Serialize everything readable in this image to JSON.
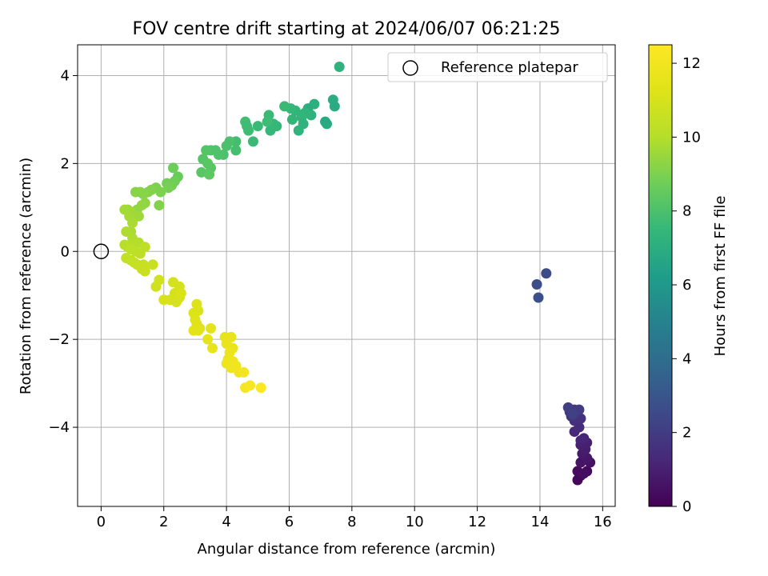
{
  "chart_data": {
    "type": "scatter",
    "title": "FOV centre drift starting at 2024/06/07 06:21:25",
    "xlabel": "Angular distance from reference (arcmin)",
    "ylabel": "Rotation from reference (arcmin)",
    "xlim": [
      -0.75,
      16.4
    ],
    "ylim": [
      -5.8,
      4.7
    ],
    "xticks": [
      0,
      2,
      4,
      6,
      8,
      10,
      12,
      14,
      16
    ],
    "yticks": [
      -4,
      -2,
      0,
      2,
      4
    ],
    "xtick_labels": [
      "0",
      "2",
      "4",
      "6",
      "8",
      "10",
      "12",
      "14",
      "16"
    ],
    "ytick_labels": [
      "−4",
      "−2",
      "0",
      "2",
      "4"
    ],
    "grid": true,
    "legend": {
      "position": "top-right",
      "label": "Reference platepar"
    },
    "reference_point": {
      "x": 0,
      "y": 0
    },
    "colorbar": {
      "label": "Hours from first FF file",
      "colormap": "viridis",
      "range": [
        0,
        12.5
      ],
      "ticks": [
        0,
        2,
        4,
        6,
        8,
        10,
        12
      ],
      "tick_labels": [
        "0",
        "2",
        "4",
        "6",
        "8",
        "10",
        "12"
      ]
    },
    "series": [
      {
        "points": [
          [
            15.2,
            -5.2
          ],
          [
            15.3,
            -5.1
          ],
          [
            15.5,
            -5.0
          ],
          [
            15.2,
            -5.0
          ],
          [
            15.4,
            -5.05
          ],
          [
            15.6,
            -4.8
          ],
          [
            15.3,
            -4.8
          ],
          [
            15.5,
            -4.7
          ],
          [
            15.35,
            -4.6
          ],
          [
            15.45,
            -4.5
          ],
          [
            15.3,
            -4.4
          ],
          [
            15.5,
            -4.35
          ],
          [
            15.3,
            -4.3
          ],
          [
            15.4,
            -4.25
          ],
          [
            15.1,
            -4.1
          ],
          [
            15.25,
            -4.0
          ],
          [
            15.1,
            -3.85
          ],
          [
            15.3,
            -3.8
          ],
          [
            15.0,
            -3.75
          ],
          [
            14.95,
            -3.65
          ],
          [
            15.1,
            -3.6
          ],
          [
            15.25,
            -3.6
          ],
          [
            14.9,
            -3.55
          ],
          [
            15.05,
            -3.7
          ],
          [
            13.9,
            -0.75
          ],
          [
            14.2,
            -0.5
          ],
          [
            13.95,
            -1.05
          ],
          [
            7.6,
            4.2
          ],
          [
            7.4,
            3.45
          ],
          [
            7.45,
            3.3
          ],
          [
            6.8,
            3.35
          ],
          [
            6.6,
            3.25
          ],
          [
            6.7,
            3.1
          ],
          [
            6.5,
            3.15
          ],
          [
            6.4,
            3.05
          ],
          [
            6.2,
            3.2
          ],
          [
            6.05,
            3.25
          ],
          [
            5.85,
            3.3
          ],
          [
            6.1,
            3.0
          ],
          [
            6.45,
            2.9
          ],
          [
            6.3,
            2.75
          ],
          [
            7.2,
            2.9
          ],
          [
            7.15,
            2.95
          ],
          [
            5.6,
            2.85
          ],
          [
            5.4,
            2.75
          ],
          [
            5.5,
            2.9
          ],
          [
            5.35,
            3.1
          ],
          [
            5.3,
            2.95
          ],
          [
            5.0,
            2.85
          ],
          [
            4.85,
            2.5
          ],
          [
            4.7,
            2.75
          ],
          [
            4.6,
            2.95
          ],
          [
            4.65,
            2.85
          ],
          [
            4.3,
            2.5
          ],
          [
            4.3,
            2.3
          ],
          [
            4.1,
            2.5
          ],
          [
            4.0,
            2.4
          ],
          [
            3.9,
            2.2
          ],
          [
            3.65,
            2.3
          ],
          [
            3.75,
            2.2
          ],
          [
            3.5,
            2.3
          ],
          [
            3.35,
            2.3
          ],
          [
            3.25,
            2.1
          ],
          [
            3.4,
            2.0
          ],
          [
            3.5,
            1.9
          ],
          [
            3.2,
            1.8
          ],
          [
            3.45,
            1.75
          ],
          [
            2.45,
            1.7
          ],
          [
            2.35,
            1.6
          ],
          [
            2.25,
            1.5
          ],
          [
            2.1,
            1.55
          ],
          [
            2.3,
            1.9
          ],
          [
            2.15,
            1.45
          ],
          [
            1.9,
            1.35
          ],
          [
            1.75,
            1.45
          ],
          [
            1.6,
            1.4
          ],
          [
            1.5,
            1.35
          ],
          [
            1.35,
            1.3
          ],
          [
            1.25,
            1.35
          ],
          [
            1.1,
            1.35
          ],
          [
            1.4,
            1.1
          ],
          [
            1.3,
            1.05
          ],
          [
            1.15,
            0.95
          ],
          [
            1.05,
            0.85
          ],
          [
            1.2,
            0.8
          ],
          [
            0.95,
            0.9
          ],
          [
            0.85,
            0.95
          ],
          [
            0.75,
            0.95
          ],
          [
            0.9,
            0.8
          ],
          [
            1.0,
            0.65
          ],
          [
            0.95,
            0.45
          ],
          [
            0.8,
            0.45
          ],
          [
            1.85,
            1.05
          ],
          [
            1.0,
            0.3
          ],
          [
            1.2,
            0.2
          ],
          [
            1.0,
            0.15
          ],
          [
            0.85,
            0.1
          ],
          [
            0.75,
            0.15
          ],
          [
            0.95,
            0.05
          ],
          [
            1.1,
            0.0
          ],
          [
            1.4,
            0.1
          ],
          [
            1.25,
            -0.05
          ],
          [
            0.8,
            -0.15
          ],
          [
            0.95,
            -0.2
          ],
          [
            1.05,
            -0.25
          ],
          [
            1.15,
            -0.3
          ],
          [
            1.35,
            -0.3
          ],
          [
            1.65,
            -0.3
          ],
          [
            1.3,
            -0.4
          ],
          [
            1.4,
            -0.45
          ],
          [
            1.85,
            -0.65
          ],
          [
            1.75,
            -0.8
          ],
          [
            2.3,
            -0.7
          ],
          [
            2.5,
            -0.8
          ],
          [
            2.35,
            -0.95
          ],
          [
            2.5,
            -1.05
          ],
          [
            2.2,
            -1.1
          ],
          [
            2.0,
            -1.1
          ],
          [
            2.4,
            -1.15
          ],
          [
            2.55,
            -0.95
          ],
          [
            3.05,
            -1.2
          ],
          [
            3.1,
            -1.35
          ],
          [
            2.95,
            -1.4
          ],
          [
            3.0,
            -1.55
          ],
          [
            3.05,
            -1.65
          ],
          [
            3.15,
            -1.75
          ],
          [
            2.95,
            -1.8
          ],
          [
            3.1,
            -1.8
          ],
          [
            3.5,
            -1.75
          ],
          [
            3.4,
            -2.0
          ],
          [
            3.55,
            -2.2
          ],
          [
            3.95,
            -1.95
          ],
          [
            4.15,
            -1.95
          ],
          [
            4.0,
            -2.1
          ],
          [
            4.2,
            -2.2
          ],
          [
            4.1,
            -2.3
          ],
          [
            4.05,
            -2.45
          ],
          [
            4.2,
            -2.5
          ],
          [
            4.0,
            -2.55
          ],
          [
            4.15,
            -2.65
          ],
          [
            4.3,
            -2.6
          ],
          [
            4.4,
            -2.75
          ],
          [
            4.55,
            -2.75
          ],
          [
            4.6,
            -3.1
          ],
          [
            4.75,
            -3.05
          ],
          [
            5.1,
            -3.1
          ]
        ],
        "hours": [
          0.2,
          0.2,
          0.3,
          0.3,
          0.4,
          0.5,
          0.6,
          0.7,
          0.8,
          0.9,
          1.0,
          1.0,
          1.1,
          1.2,
          1.3,
          1.4,
          1.5,
          1.6,
          1.7,
          1.8,
          1.9,
          2.0,
          2.1,
          2.2,
          2.7,
          2.6,
          2.8,
          7.2,
          7.0,
          6.9,
          7.1,
          7.0,
          7.2,
          7.3,
          7.4,
          7.4,
          7.5,
          7.6,
          7.4,
          7.2,
          7.3,
          6.9,
          6.8,
          7.5,
          7.5,
          7.5,
          7.6,
          7.7,
          7.6,
          7.6,
          7.7,
          7.8,
          7.7,
          7.8,
          7.9,
          8.0,
          8.0,
          8.0,
          8.1,
          8.1,
          8.1,
          8.2,
          8.2,
          8.3,
          8.3,
          8.3,
          8.4,
          8.6,
          8.7,
          8.8,
          8.8,
          8.7,
          8.9,
          9.0,
          9.0,
          9.1,
          9.1,
          9.2,
          9.2,
          9.2,
          9.3,
          9.4,
          9.4,
          9.5,
          9.6,
          9.6,
          9.6,
          9.7,
          9.7,
          9.8,
          9.8,
          9.9,
          9.1,
          9.9,
          10.0,
          10.0,
          10.1,
          10.1,
          10.2,
          10.2,
          10.3,
          10.3,
          10.4,
          10.4,
          10.5,
          10.5,
          10.5,
          10.6,
          10.6,
          10.6,
          10.8,
          10.8,
          10.9,
          10.9,
          10.9,
          11.0,
          11.0,
          11.0,
          11.0,
          11.1,
          11.2,
          11.2,
          11.2,
          11.3,
          11.3,
          11.3,
          11.4,
          11.4,
          11.5,
          11.5,
          11.6,
          11.6,
          11.6,
          11.7,
          11.7,
          11.8,
          11.8,
          11.9,
          11.9,
          11.9,
          12.0,
          12.0,
          12.1,
          12.2,
          12.3,
          12.4
        ]
      }
    ]
  }
}
